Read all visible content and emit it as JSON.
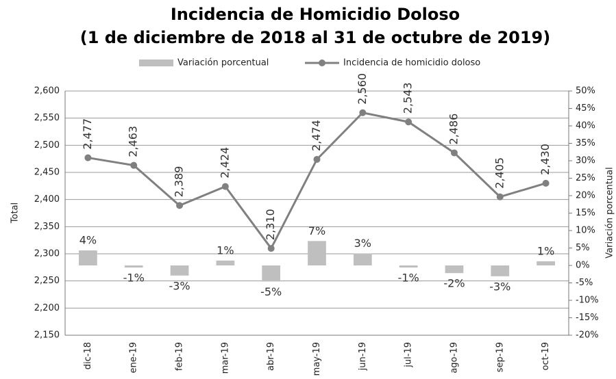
{
  "chart_data": {
    "type": "bar-line",
    "title": "Incidencia de Homicidio Doloso",
    "subtitle": "(1 de diciembre de 2018 al 31 de octubre de 2019)",
    "y_label": "Total",
    "y2_label": "Variación porcentual",
    "categories": [
      "dic-18",
      "ene-19",
      "feb-19",
      "mar-19",
      "abr-19",
      "may-19",
      "jun-19",
      "jul-19",
      "ago-19",
      "sep-19",
      "oct-19"
    ],
    "series": [
      {
        "name": "Variación porcentual",
        "type": "bar",
        "axis": "y2",
        "color": "#bfbfbf",
        "values": [
          4.3,
          -0.6,
          -2.9,
          1.4,
          -4.6,
          7.0,
          3.4,
          -0.6,
          -2.2,
          -3.1,
          1.2
        ],
        "value_labels": [
          "4%",
          "-1%",
          "-3%",
          "1%",
          "-5%",
          "7%",
          "3%",
          "-1%",
          "-2%",
          "-3%",
          "1%"
        ]
      },
      {
        "name": "Incidencia de homicidio doloso",
        "type": "line",
        "color": "#808080",
        "values": [
          2477,
          2463,
          2389,
          2424,
          2310,
          2474,
          2560,
          2543,
          2486,
          2405,
          2430
        ],
        "value_labels": [
          "2,477",
          "2,463",
          "2,389",
          "2,424",
          "2,310",
          "2,474",
          "2,560",
          "2,543",
          "2,486",
          "2,405",
          "2,430"
        ]
      }
    ],
    "ylim": [
      2150,
      2600
    ],
    "yticks": [
      {
        "value": 2150,
        "label": "2,150"
      },
      {
        "value": 2200,
        "label": "2,200"
      },
      {
        "value": 2250,
        "label": "2,250"
      },
      {
        "value": 2300,
        "label": "2,300"
      },
      {
        "value": 2350,
        "label": "2,350"
      },
      {
        "value": 2400,
        "label": "2,400"
      },
      {
        "value": 2450,
        "label": "2,450"
      },
      {
        "value": 2500,
        "label": "2,500"
      },
      {
        "value": 2550,
        "label": "2,550"
      },
      {
        "value": 2600,
        "label": "2,600"
      }
    ],
    "y2lim": [
      -20,
      50
    ],
    "y2ticks": [
      {
        "value": -20,
        "label": "-20%"
      },
      {
        "value": -15,
        "label": "-15%"
      },
      {
        "value": -10,
        "label": "-10%"
      },
      {
        "value": -5,
        "label": "-5%"
      },
      {
        "value": 0,
        "label": "0%"
      },
      {
        "value": 5,
        "label": "5%"
      },
      {
        "value": 10,
        "label": "10%"
      },
      {
        "value": 15,
        "label": "15%"
      },
      {
        "value": 20,
        "label": "20%"
      },
      {
        "value": 25,
        "label": "25%"
      },
      {
        "value": 30,
        "label": "30%"
      },
      {
        "value": 35,
        "label": "35%"
      },
      {
        "value": 40,
        "label": "40%"
      },
      {
        "value": 45,
        "label": "45%"
      },
      {
        "value": 50,
        "label": "50%"
      }
    ],
    "grid": true,
    "legend": "top"
  }
}
